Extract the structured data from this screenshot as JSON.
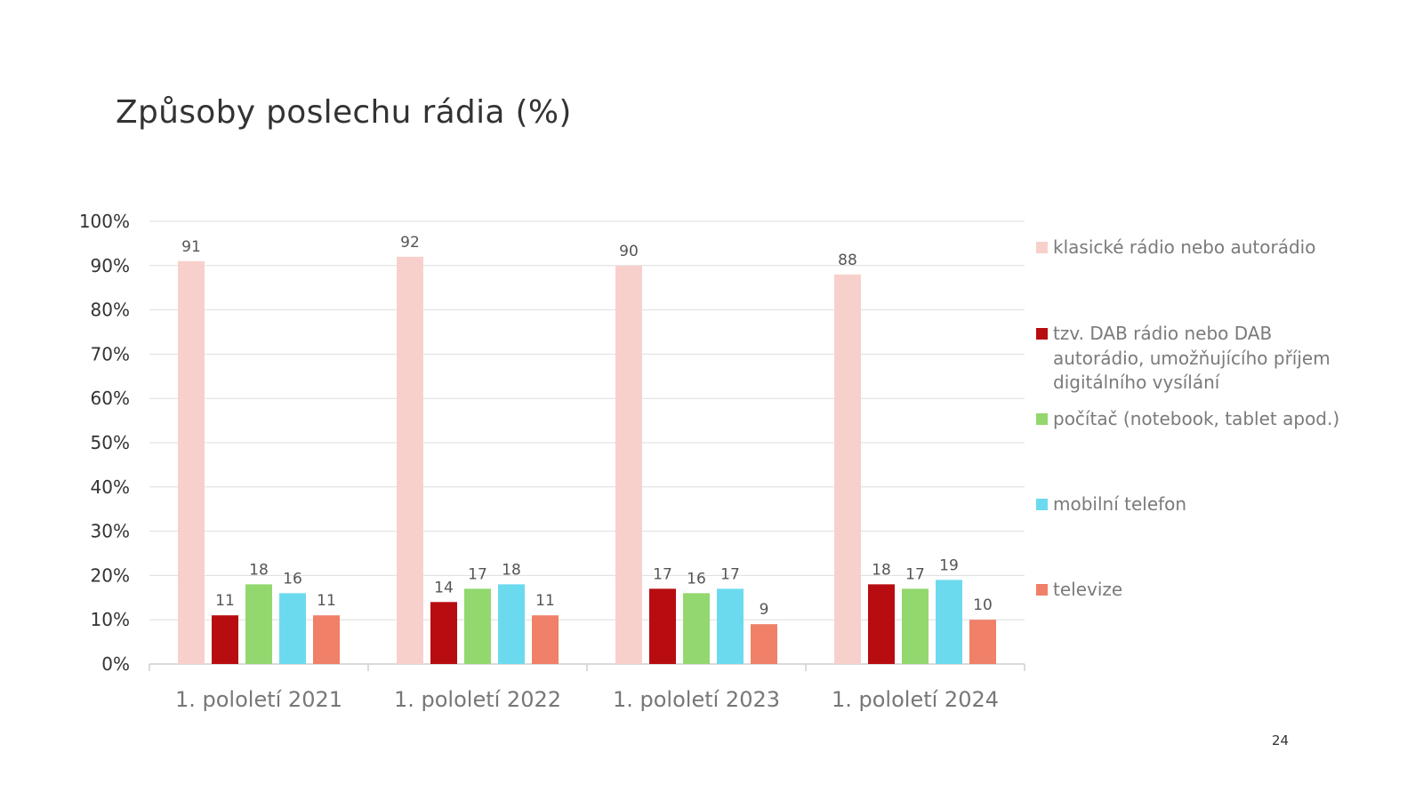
{
  "page_number": "24",
  "chart_data": {
    "type": "bar",
    "title": "Způsoby poslechu rádia (%)",
    "xlabel": "",
    "ylabel": "",
    "ylim": [
      0,
      100
    ],
    "yticks": [
      "0%",
      "10%",
      "20%",
      "30%",
      "40%",
      "50%",
      "60%",
      "70%",
      "80%",
      "90%",
      "100%"
    ],
    "grid": true,
    "legend_position": "right",
    "categories": [
      "1. pololetí 2021",
      "1. pololetí 2022",
      "1. pololetí 2023",
      "1. pololetí 2024"
    ],
    "series": [
      {
        "name": "klasické rádio nebo autorádio",
        "color": "#F8D0CB",
        "values": [
          91,
          92,
          90,
          88
        ]
      },
      {
        "name": "tzv. DAB rádio nebo DAB autorádio, umožňujícího příjem digitálního vysílání",
        "color": "#B80D10",
        "values": [
          11,
          14,
          17,
          18
        ]
      },
      {
        "name": "počítač (notebook, tablet apod.)",
        "color": "#92D86E",
        "values": [
          18,
          17,
          16,
          17
        ]
      },
      {
        "name": "mobilní telefon",
        "color": "#6CDAEE",
        "values": [
          16,
          18,
          17,
          19
        ]
      },
      {
        "name": "televize",
        "color": "#F08068",
        "values": [
          11,
          11,
          9,
          10
        ]
      }
    ]
  }
}
